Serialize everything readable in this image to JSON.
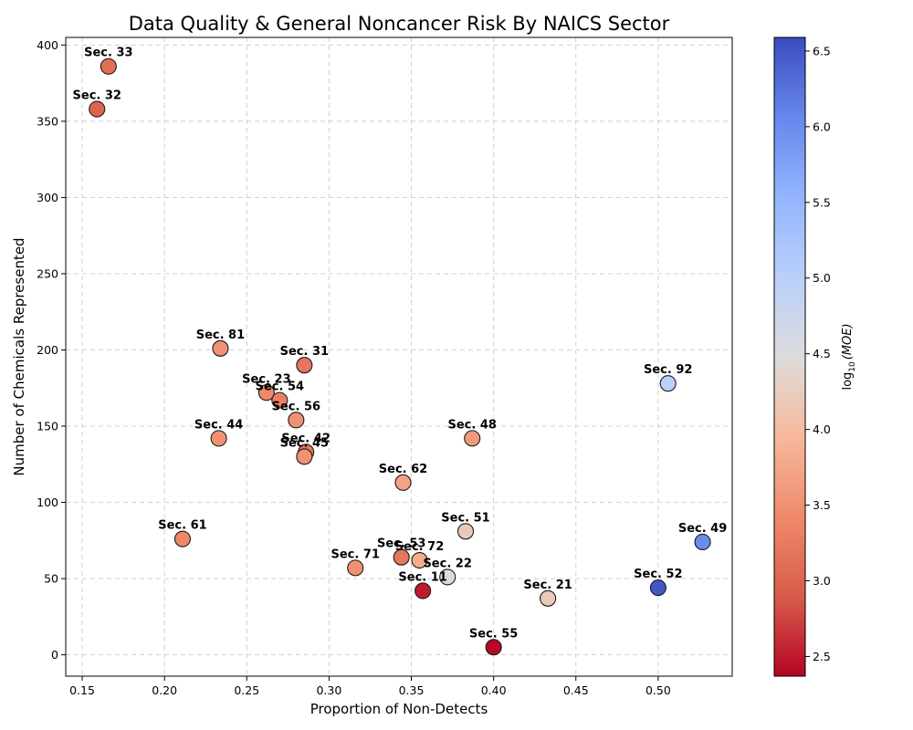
{
  "chart_data": {
    "type": "scatter",
    "title": "Data Quality & General Noncancer Risk By NAICS Sector",
    "xlabel": "Proportion of Non-Detects",
    "ylabel": "Number of Chemicals Represented",
    "colorbar_label": "log10(MOE)",
    "colorbar_label_parts": {
      "base": "log",
      "sub": "10",
      "arg": "(MOE)"
    },
    "colormap": "coolwarm",
    "xlim": [
      0.14,
      0.545
    ],
    "ylim": [
      -14,
      405
    ],
    "color_range": [
      2.37,
      6.59
    ],
    "x_ticks": [
      0.15,
      0.2,
      0.25,
      0.3,
      0.35,
      0.4,
      0.45,
      0.5
    ],
    "x_tick_labels": [
      "0.15",
      "0.20",
      "0.25",
      "0.30",
      "0.35",
      "0.40",
      "0.45",
      "0.50"
    ],
    "y_ticks": [
      0,
      50,
      100,
      150,
      200,
      250,
      300,
      350,
      400
    ],
    "y_tick_labels": [
      "0",
      "50",
      "100",
      "150",
      "200",
      "250",
      "300",
      "350",
      "400"
    ],
    "color_ticks": [
      2.5,
      3.0,
      3.5,
      4.0,
      4.5,
      5.0,
      5.5,
      6.0,
      6.5
    ],
    "color_tick_labels": [
      "2.5",
      "3.0",
      "3.5",
      "4.0",
      "4.5",
      "5.0",
      "5.5",
      "6.0",
      "6.5"
    ],
    "grid": true,
    "points": [
      {
        "label": "Sec. 33",
        "x": 0.166,
        "y": 386,
        "c": 3.1
      },
      {
        "label": "Sec. 32",
        "x": 0.159,
        "y": 358,
        "c": 3.0
      },
      {
        "label": "Sec. 81",
        "x": 0.234,
        "y": 201,
        "c": 3.5
      },
      {
        "label": "Sec. 31",
        "x": 0.285,
        "y": 190,
        "c": 3.2
      },
      {
        "label": "Sec. 23",
        "x": 0.262,
        "y": 172,
        "c": 3.4
      },
      {
        "label": "Sec. 54",
        "x": 0.27,
        "y": 167,
        "c": 3.3
      },
      {
        "label": "Sec. 56",
        "x": 0.28,
        "y": 154,
        "c": 3.5
      },
      {
        "label": "Sec. 44",
        "x": 0.233,
        "y": 142,
        "c": 3.5
      },
      {
        "label": "Sec. 42",
        "x": 0.286,
        "y": 133,
        "c": 3.2
      },
      {
        "label": "Sec. 45",
        "x": 0.285,
        "y": 130,
        "c": 3.5
      },
      {
        "label": "Sec. 92",
        "x": 0.506,
        "y": 178,
        "c": 5.0
      },
      {
        "label": "Sec. 48",
        "x": 0.387,
        "y": 142,
        "c": 3.6
      },
      {
        "label": "Sec. 62",
        "x": 0.345,
        "y": 113,
        "c": 3.7
      },
      {
        "label": "Sec. 61",
        "x": 0.211,
        "y": 76,
        "c": 3.4
      },
      {
        "label": "Sec. 51",
        "x": 0.383,
        "y": 81,
        "c": 4.2
      },
      {
        "label": "Sec. 49",
        "x": 0.527,
        "y": 74,
        "c": 6.0
      },
      {
        "label": "Sec. 53",
        "x": 0.344,
        "y": 64,
        "c": 3.2
      },
      {
        "label": "Sec. 72",
        "x": 0.355,
        "y": 62,
        "c": 3.8
      },
      {
        "label": "Sec. 71",
        "x": 0.316,
        "y": 57,
        "c": 3.5
      },
      {
        "label": "Sec. 22",
        "x": 0.372,
        "y": 51,
        "c": 4.5
      },
      {
        "label": "Sec. 11",
        "x": 0.357,
        "y": 42,
        "c": 2.5
      },
      {
        "label": "Sec. 52",
        "x": 0.5,
        "y": 44,
        "c": 6.5
      },
      {
        "label": "Sec. 21",
        "x": 0.433,
        "y": 37,
        "c": 4.2
      },
      {
        "label": "Sec. 55",
        "x": 0.4,
        "y": 5,
        "c": 2.4
      }
    ]
  }
}
